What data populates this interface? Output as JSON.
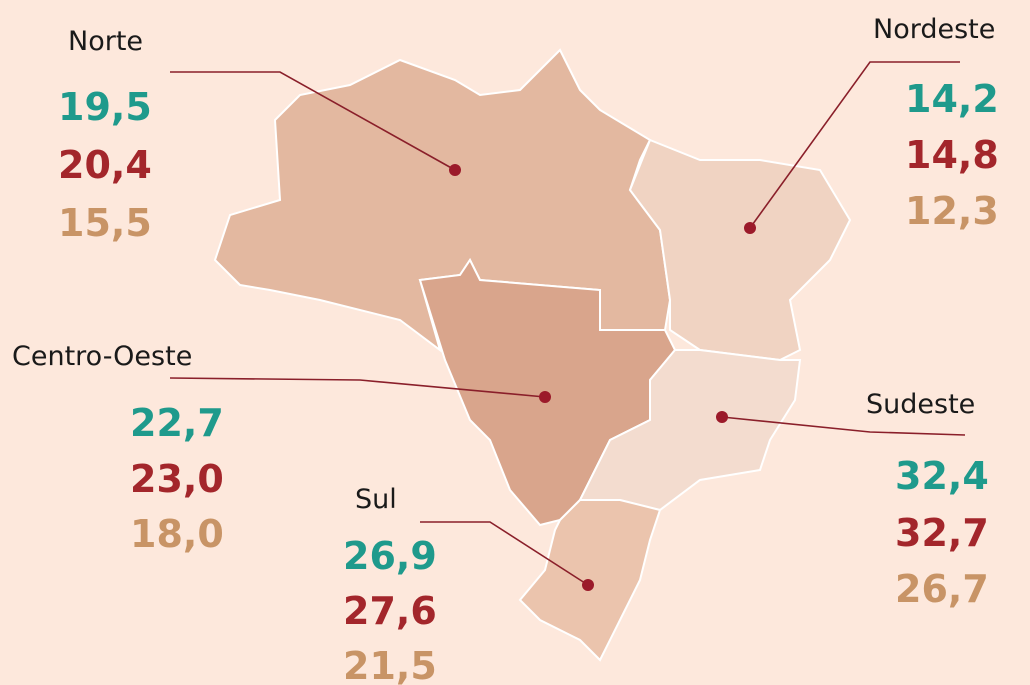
{
  "regions": [
    {
      "name": "Norte",
      "values": [
        "19,5",
        "20,4",
        "15,5"
      ]
    },
    {
      "name": "Nordeste",
      "values": [
        "14,2",
        "14,8",
        "12,3"
      ]
    },
    {
      "name": "Centro-Oeste",
      "values": [
        "22,7",
        "23,0",
        "18,0"
      ]
    },
    {
      "name": "Sudeste",
      "values": [
        "32,4",
        "32,7",
        "26,7"
      ]
    },
    {
      "name": "Sul",
      "values": [
        "26,9",
        "27,6",
        "21,5"
      ]
    }
  ]
}
